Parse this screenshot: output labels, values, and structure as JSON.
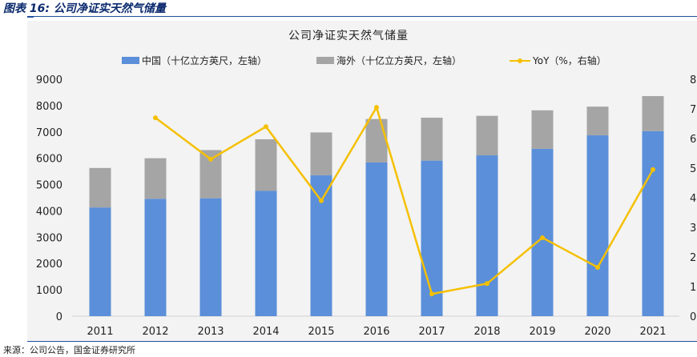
{
  "figure_title": "图表 16: 公司净证实天然气储量",
  "source_note": "来源：公司公告，国金证券研究所",
  "chart_data": {
    "type": "bar",
    "stacked": true,
    "title": "公司净证实天然气储量",
    "categories": [
      "2011",
      "2012",
      "2013",
      "2014",
      "2015",
      "2016",
      "2017",
      "2018",
      "2019",
      "2020",
      "2021"
    ],
    "series": [
      {
        "name": "中国（十亿立方英尺，左轴）",
        "type": "bar",
        "axis": "left",
        "color": "#5b8fd9",
        "values": [
          4130,
          4460,
          4480,
          4760,
          5350,
          5840,
          5910,
          6110,
          6360,
          6870,
          7030
        ]
      },
      {
        "name": "海外（十亿立方英尺，左轴）",
        "type": "bar",
        "axis": "left",
        "color": "#a5a5a5",
        "values": [
          1500,
          1540,
          1830,
          1960,
          1630,
          1650,
          1630,
          1500,
          1460,
          1090,
          1330
        ]
      },
      {
        "name": "YoY（%，右轴）",
        "type": "line",
        "axis": "right",
        "color": "#f5c000",
        "values": [
          null,
          6.7,
          5.3,
          6.4,
          3.9,
          7.05,
          0.75,
          1.1,
          2.65,
          1.65,
          4.95
        ]
      }
    ],
    "y_left": {
      "min": 0,
      "max": 9000,
      "ticks": [
        0,
        1000,
        2000,
        3000,
        4000,
        5000,
        6000,
        7000,
        8000,
        9000
      ]
    },
    "y_right": {
      "min": 0,
      "max": 8,
      "ticks": [
        0,
        1,
        2,
        3,
        4,
        5,
        6,
        7,
        8
      ]
    },
    "legend_position": "top",
    "grid": false
  }
}
